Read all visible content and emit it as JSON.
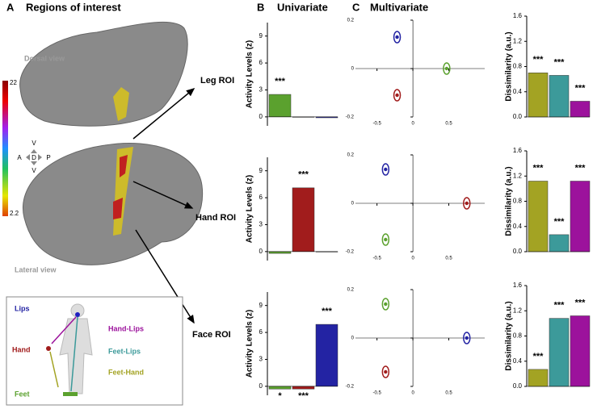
{
  "figure": {
    "panel_a": "A",
    "title_a": "Regions of interest",
    "panel_b": "B",
    "title_b": "Univariate",
    "panel_c": "C",
    "title_c": "Multivariate",
    "dorsal": "Dorsal view",
    "lateral": "Lateral view",
    "rois": [
      "Leg ROI",
      "Hand ROI",
      "Face ROI"
    ],
    "colorbar": [
      "22",
      "2.2"
    ],
    "compass": [
      "V",
      "A",
      "D",
      "P",
      "V"
    ],
    "body_labels": [
      "Lips",
      "Hand-Lips",
      "Hand",
      "Feet-Lips",
      "Feet-Hand",
      "Feet"
    ]
  },
  "chart_data": [
    {
      "type": "bar",
      "ylabel": "Activity Levels (z)",
      "values": [
        2.5,
        0.0,
        -0.1
      ],
      "colors": [
        "#5ba12e",
        "#a11c1c",
        "#2323a3"
      ],
      "annotations": [
        "***",
        null,
        null
      ],
      "ylim": [
        -1,
        10.5
      ],
      "yticks": [
        0,
        3,
        6,
        9
      ]
    },
    {
      "type": "bar",
      "ylabel": "Activity Levels (z)",
      "values": [
        -0.2,
        7.1,
        0.0
      ],
      "colors": [
        "#5ba12e",
        "#a11c1c",
        "#2323a3"
      ],
      "annotations": [
        null,
        "***",
        null
      ],
      "ylim": [
        -1,
        10.5
      ],
      "yticks": [
        0,
        3,
        6,
        9
      ]
    },
    {
      "type": "bar",
      "ylabel": "Activity Levels (z)",
      "values": [
        -0.3,
        -0.3,
        6.9
      ],
      "colors": [
        "#5ba12e",
        "#a11c1c",
        "#2323a3"
      ],
      "annotations": [
        "*",
        "***",
        "***"
      ],
      "ylim": [
        -1,
        10.5
      ],
      "yticks": [
        0,
        3,
        6,
        9
      ]
    },
    {
      "type": "scatter",
      "x": [
        -0.22,
        -0.22,
        0.47
      ],
      "y": [
        0.13,
        -0.11,
        0.0
      ],
      "colors": [
        "#2323a3",
        "#a11c1c",
        "#5ba12e"
      ],
      "xlim": [
        -0.8,
        1.0
      ],
      "xticks": [
        -0.5,
        0,
        0.5
      ],
      "ylim": [
        -0.2,
        0.2
      ],
      "yticks": [
        -0.2,
        0,
        0.2
      ]
    },
    {
      "type": "scatter",
      "x": [
        -0.38,
        -0.38,
        0.75
      ],
      "y": [
        0.14,
        -0.15,
        0.0
      ],
      "colors": [
        "#2323a3",
        "#5ba12e",
        "#a11c1c"
      ],
      "xlim": [
        -0.8,
        1.0
      ],
      "xticks": [
        -0.5,
        0,
        0.5
      ],
      "ylim": [
        -0.2,
        0.2
      ],
      "yticks": [
        -0.2,
        0,
        0.2
      ]
    },
    {
      "type": "scatter",
      "x": [
        -0.38,
        -0.38,
        0.75
      ],
      "y": [
        0.14,
        -0.14,
        0.0
      ],
      "colors": [
        "#5ba12e",
        "#a11c1c",
        "#2323a3"
      ],
      "xlim": [
        -0.8,
        1.0
      ],
      "xticks": [
        -0.5,
        0,
        0.5
      ],
      "ylim": [
        -0.2,
        0.2
      ],
      "yticks": [
        -0.2,
        0,
        0.2
      ]
    },
    {
      "type": "bar",
      "ylabel": "Dissimilarity (a.u.)",
      "values": [
        0.7,
        0.66,
        0.25
      ],
      "colors": [
        "#a3a323",
        "#3c9a9a",
        "#9c129c"
      ],
      "annotations": [
        "***",
        "***",
        "***"
      ],
      "ylim": [
        0,
        1.6
      ],
      "yticks": [
        {
          "value": 0,
          "label": "0.0"
        },
        0.4,
        0.8,
        1.2,
        1.6
      ]
    },
    {
      "type": "bar",
      "ylabel": "Dissimilarity (a.u.)",
      "values": [
        1.12,
        0.27,
        1.12
      ],
      "colors": [
        "#a3a323",
        "#3c9a9a",
        "#9c129c"
      ],
      "annotations": [
        "***",
        "***",
        "***"
      ],
      "ylim": [
        0,
        1.6
      ],
      "yticks": [
        {
          "value": 0,
          "label": "0.0"
        },
        0.4,
        0.8,
        1.2,
        1.6
      ]
    },
    {
      "type": "bar",
      "ylabel": "Dissimilarity (a.u.)",
      "values": [
        0.27,
        1.08,
        1.12
      ],
      "colors": [
        "#a3a323",
        "#3c9a9a",
        "#9c129c"
      ],
      "annotations": [
        "***",
        "***",
        "***"
      ],
      "ylim": [
        0,
        1.6
      ],
      "yticks": [
        {
          "value": 0,
          "label": "0.0"
        },
        0.4,
        0.8,
        1.2,
        1.6
      ]
    }
  ]
}
